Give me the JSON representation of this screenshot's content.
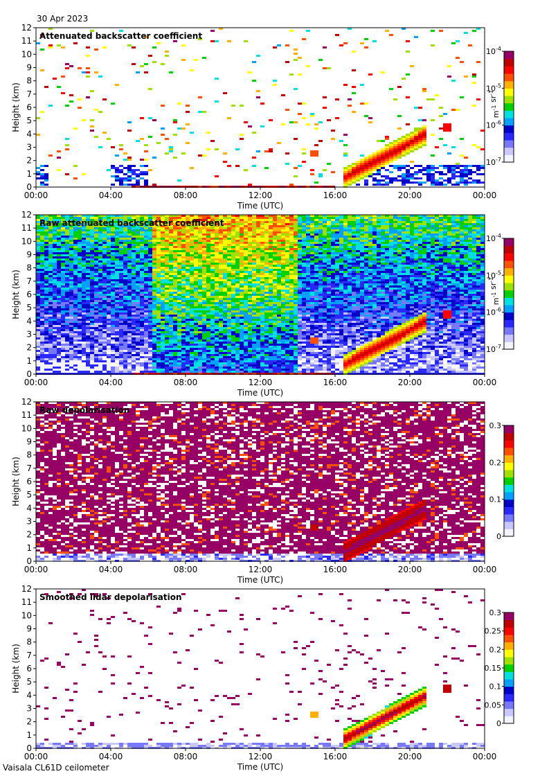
{
  "date": "30 Apr 2023",
  "instrument": "Vaisala CL61D ceilometer",
  "colors": {
    "background": "#ffffff",
    "frame": "#000000",
    "missing": "#d9d9d9"
  },
  "colormap": [
    "#f4f4ff",
    "#c8c8ff",
    "#7878ff",
    "#2828ff",
    "#0000c8",
    "#00a0ff",
    "#00e0e0",
    "#00d000",
    "#a0e000",
    "#ffff00",
    "#ffb000",
    "#ff5000",
    "#ff0000",
    "#c00000",
    "#960064"
  ],
  "chart_data": [
    {
      "type": "heatmap",
      "title": "Attenuated backscatter coefficient",
      "xlabel": "Time (UTC)",
      "ylabel": "Height (km)",
      "x_ticks": [
        "00:00",
        "04:00",
        "08:00",
        "12:00",
        "16:00",
        "20:00",
        "00:00"
      ],
      "y_ticks": [
        "0",
        "1",
        "2",
        "3",
        "4",
        "5",
        "6",
        "7",
        "8",
        "9",
        "10",
        "11",
        "12"
      ],
      "xlim_hours": [
        0,
        24
      ],
      "ylim_km": [
        0,
        12
      ],
      "colorbar": {
        "scale": "log",
        "ticks": [
          "10-7",
          "10-6",
          "10-5",
          "10-4"
        ],
        "unit": "m-1 sr-1",
        "min": 1e-07,
        "max": 0.0001
      },
      "features": {
        "aerosol_layer_top_km": 1.8,
        "cloud_base_16_22h_km": [
          1.5,
          4.8
        ],
        "noise": "sparse"
      }
    },
    {
      "type": "heatmap",
      "title": "Raw attenuated backscatter coefficient",
      "xlabel": "Time (UTC)",
      "ylabel": "Height (km)",
      "x_ticks": [
        "00:00",
        "04:00",
        "08:00",
        "12:00",
        "16:00",
        "20:00",
        "00:00"
      ],
      "y_ticks": [
        "0",
        "1",
        "2",
        "3",
        "4",
        "5",
        "6",
        "7",
        "8",
        "9",
        "10",
        "11",
        "12"
      ],
      "xlim_hours": [
        0,
        24
      ],
      "ylim_km": [
        0,
        12
      ],
      "colorbar": {
        "scale": "log",
        "ticks": [
          "10-7",
          "10-6",
          "10-5",
          "10-4"
        ],
        "unit": "m-1 sr-1",
        "min": 1e-07,
        "max": 0.0001
      },
      "features": {
        "noise": "dense",
        "daytime_noise_peak_hours": [
          6,
          14
        ]
      }
    },
    {
      "type": "heatmap",
      "title": "Raw depolarisation",
      "xlabel": "Time (UTC)",
      "ylabel": "Height (km)",
      "x_ticks": [
        "00:00",
        "04:00",
        "08:00",
        "12:00",
        "16:00",
        "20:00",
        "00:00"
      ],
      "y_ticks": [
        "0",
        "1",
        "2",
        "3",
        "4",
        "5",
        "6",
        "7",
        "8",
        "9",
        "10",
        "11",
        "12"
      ],
      "xlim_hours": [
        0,
        24
      ],
      "ylim_km": [
        0,
        12
      ],
      "colorbar": {
        "scale": "linear",
        "ticks": [
          "0",
          "0.1",
          "0.2",
          "0.3"
        ],
        "min": 0,
        "max": 0.3
      },
      "features": {
        "noise": "saturated"
      }
    },
    {
      "type": "heatmap",
      "title": "Smoothed lidar depolarisation",
      "xlabel": "Time (UTC)",
      "ylabel": "Height (km)",
      "x_ticks": [
        "00:00",
        "04:00",
        "08:00",
        "12:00",
        "16:00",
        "20:00",
        "00:00"
      ],
      "y_ticks": [
        "0",
        "1",
        "2",
        "3",
        "4",
        "5",
        "6",
        "7",
        "8",
        "9",
        "10",
        "11",
        "12"
      ],
      "xlim_hours": [
        0,
        24
      ],
      "ylim_km": [
        0,
        12
      ],
      "colorbar": {
        "scale": "linear",
        "ticks": [
          "0",
          "0.05",
          "0.1",
          "0.15",
          "0.2",
          "0.25",
          "0.3"
        ],
        "min": 0,
        "max": 0.3
      },
      "features": {
        "noise": "sparse"
      }
    }
  ]
}
